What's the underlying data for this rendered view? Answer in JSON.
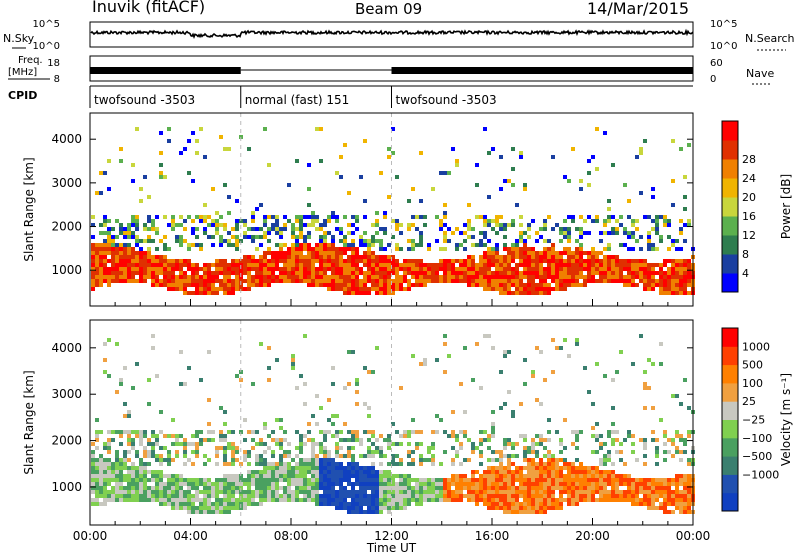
{
  "header": {
    "station": "Inuvik (fitACF)",
    "beam": "Beam 09",
    "date": "14/Mar/2015"
  },
  "colors": {
    "power": [
      "#0000ff",
      "#1a3fa0",
      "#2e7d4f",
      "#5bb04e",
      "#c8d63c",
      "#f0b400",
      "#f08000",
      "#e03000",
      "#ff0000"
    ],
    "velocity": [
      "#ff0000",
      "#ff4000",
      "#ff8000",
      "#f0a040",
      "#c8c8c0",
      "#80d050",
      "#4aa060",
      "#3a7f6f",
      "#2050b0",
      "#1040c0"
    ],
    "ground": "#a0a0a0"
  },
  "panels": {
    "nsky": {
      "left_label": "N.Sky",
      "right_label": "N.Search",
      "ticks": [
        "10^5",
        "10^0"
      ]
    },
    "freq": {
      "left_label": "Freq.",
      "unit": "[MHz]",
      "ticks_left": [
        "18",
        "8"
      ],
      "ticks_right": [
        "60",
        "0"
      ],
      "right_label": "Nave"
    },
    "cpid": {
      "label": "CPID",
      "segments": [
        {
          "label": "twofsound -3503",
          "start": 0,
          "end": 6
        },
        {
          "label": "normal (fast) 151",
          "start": 6,
          "end": 12
        },
        {
          "label": "twofsound -3503",
          "start": 12,
          "end": 24
        }
      ]
    }
  },
  "chart_data": [
    {
      "type": "heatmap",
      "name": "power",
      "ylabel": "Slant Range [km]",
      "xlim": [
        0,
        24
      ],
      "ylim": [
        180,
        4600
      ],
      "yticks": [
        1000,
        2000,
        3000,
        4000
      ],
      "colorbar": {
        "label": "Power [dB]",
        "ticks": [
          "4",
          "8",
          "12",
          "16",
          "20",
          "24",
          "28"
        ]
      },
      "bands": [
        {
          "t_start": 0,
          "t_end": 24,
          "r_low": 600,
          "r_high": 1500,
          "level": "high"
        },
        {
          "t_start": 1,
          "t_end": 23,
          "r_low": 1500,
          "r_high": 2200,
          "level": "medium"
        }
      ]
    },
    {
      "type": "heatmap",
      "name": "velocity",
      "ylabel": "Slant Range [km]",
      "xlabel": "Time UT",
      "xlim": [
        0,
        24
      ],
      "ylim": [
        180,
        4600
      ],
      "yticks": [
        1000,
        2000,
        3000,
        4000
      ],
      "xticks": [
        "00:00",
        "04:00",
        "08:00",
        "12:00",
        "16:00",
        "20:00",
        "00:00"
      ],
      "colorbar": {
        "label": "Velocity [m s⁻¹]",
        "ticks": [
          "1000",
          "500",
          "100",
          "25",
          "−25",
          "−100",
          "−500",
          "−1000"
        ]
      },
      "bands": [
        {
          "t_start": 0,
          "t_end": 24,
          "r_low": 500,
          "r_high": 2000,
          "level": "mixed"
        }
      ]
    }
  ]
}
